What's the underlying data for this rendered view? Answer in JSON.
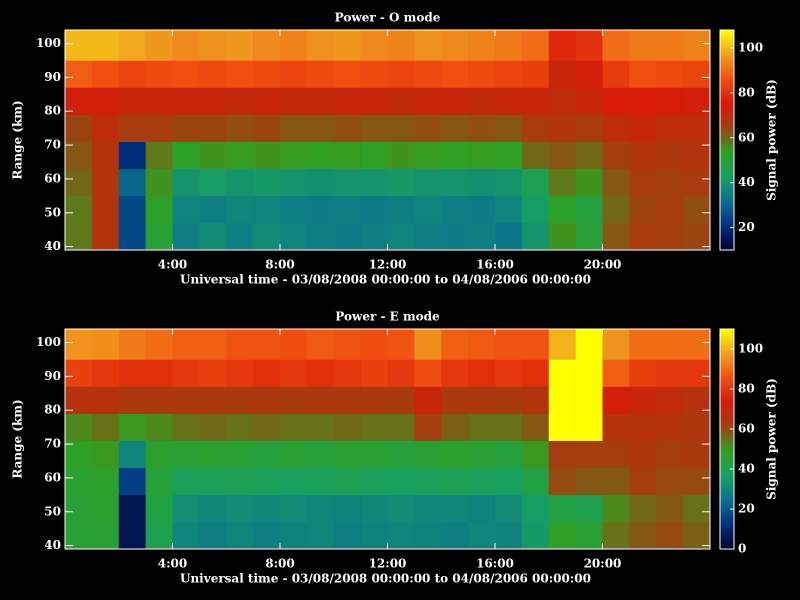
{
  "chart_data": [
    {
      "type": "heatmap",
      "title": "Power - O mode",
      "xlabel": "Universal time - 03/08/2008 00:00:00 to 04/08/2006 00:00:00",
      "ylabel": "Range (km)",
      "xlim": [
        0,
        24
      ],
      "xticks": [
        {
          "value": 4,
          "label": "4:00"
        },
        {
          "value": 8,
          "label": "8:00"
        },
        {
          "value": 12,
          "label": "12:00"
        },
        {
          "value": 16,
          "label": "16:00"
        },
        {
          "value": 20,
          "label": "20:00"
        }
      ],
      "ylim": [
        39,
        104
      ],
      "yticks": [
        40,
        50,
        60,
        70,
        80,
        90,
        100
      ],
      "xbins": [
        0,
        1,
        2,
        3,
        4,
        5,
        6,
        7,
        8,
        9,
        10,
        11,
        12,
        13,
        14,
        15,
        16,
        17,
        18,
        19,
        20,
        21,
        22,
        23,
        24
      ],
      "ybins": [
        39,
        47,
        55,
        63,
        71,
        79,
        87,
        95,
        104
      ],
      "z": [
        [
          58,
          68,
          25,
          50,
          35,
          38,
          35,
          38,
          36,
          35,
          34,
          35,
          36,
          35,
          34,
          35,
          33,
          40,
          55,
          50,
          62,
          66,
          65,
          64
        ],
        [
          58,
          68,
          25,
          52,
          36,
          35,
          37,
          36,
          35,
          34,
          35,
          34,
          35,
          36,
          35,
          34,
          36,
          42,
          52,
          48,
          60,
          64,
          66,
          63
        ],
        [
          60,
          68,
          30,
          55,
          40,
          42,
          40,
          41,
          40,
          39,
          40,
          40,
          41,
          40,
          40,
          39,
          40,
          45,
          58,
          55,
          62,
          66,
          65,
          66
        ],
        [
          62,
          68,
          20,
          58,
          52,
          55,
          54,
          55,
          54,
          53,
          54,
          53,
          55,
          54,
          53,
          54,
          53,
          60,
          62,
          60,
          65,
          68,
          67,
          68
        ],
        [
          64,
          70,
          66,
          66,
          64,
          64,
          63,
          64,
          62,
          62,
          63,
          62,
          62,
          63,
          62,
          63,
          62,
          66,
          68,
          66,
          70,
          72,
          70,
          70
        ],
        [
          74,
          74,
          72,
          72,
          72,
          72,
          71,
          72,
          71,
          71,
          72,
          72,
          71,
          72,
          72,
          71,
          72,
          72,
          70,
          72,
          76,
          76,
          75,
          74
        ],
        [
          88,
          86,
          84,
          85,
          86,
          85,
          86,
          85,
          84,
          85,
          86,
          85,
          84,
          85,
          86,
          85,
          84,
          83,
          72,
          74,
          82,
          86,
          85,
          84
        ],
        [
          100,
          100,
          98,
          96,
          94,
          95,
          96,
          94,
          93,
          95,
          96,
          94,
          93,
          95,
          94,
          93,
          92,
          90,
          78,
          80,
          90,
          92,
          92,
          93
        ]
      ],
      "colorbar": {
        "label": "Signal power (dB)",
        "lim": [
          10,
          108
        ],
        "ticks": [
          20,
          40,
          60,
          80,
          100
        ]
      },
      "colormap": [
        "#000030",
        "#003080",
        "#0a7090",
        "#18a060",
        "#30a020",
        "#a04010",
        "#d81a0a",
        "#f05010",
        "#f0a020",
        "#ffff00"
      ]
    },
    {
      "type": "heatmap",
      "title": "Power - E mode",
      "xlabel": "Universal time - 03/08/2008 00:00:00 to 04/08/2006 00:00:00",
      "ylabel": "Range (km)",
      "xlim": [
        0,
        24
      ],
      "xticks": [
        {
          "value": 4,
          "label": "4:00"
        },
        {
          "value": 8,
          "label": "8:00"
        },
        {
          "value": 12,
          "label": "12:00"
        },
        {
          "value": 16,
          "label": "16:00"
        },
        {
          "value": 20,
          "label": "20:00"
        }
      ],
      "ylim": [
        39,
        104
      ],
      "yticks": [
        40,
        50,
        60,
        70,
        80,
        90,
        100
      ],
      "xbins": [
        0,
        1,
        2,
        3,
        4,
        5,
        6,
        7,
        8,
        9,
        10,
        11,
        12,
        13,
        14,
        15,
        16,
        17,
        18,
        19,
        20,
        21,
        22,
        23,
        24
      ],
      "ybins": [
        39,
        47,
        55,
        63,
        71,
        79,
        87,
        95,
        104
      ],
      "z": [
        [
          45,
          45,
          5,
          40,
          30,
          28,
          30,
          28,
          29,
          30,
          28,
          29,
          30,
          29,
          28,
          30,
          29,
          35,
          48,
          45,
          55,
          58,
          60,
          57
        ],
        [
          45,
          46,
          5,
          42,
          32,
          30,
          31,
          30,
          31,
          30,
          29,
          30,
          31,
          30,
          30,
          29,
          31,
          36,
          42,
          40,
          52,
          56,
          58,
          55
        ],
        [
          46,
          47,
          15,
          44,
          38,
          38,
          39,
          38,
          37,
          38,
          39,
          38,
          37,
          38,
          39,
          38,
          37,
          42,
          60,
          58,
          58,
          62,
          60,
          60
        ],
        [
          48,
          50,
          30,
          46,
          45,
          46,
          45,
          44,
          45,
          44,
          45,
          45,
          44,
          45,
          46,
          45,
          44,
          50,
          62,
          62,
          62,
          64,
          62,
          63
        ],
        [
          52,
          55,
          50,
          52,
          55,
          56,
          55,
          56,
          55,
          55,
          56,
          55,
          55,
          62,
          57,
          55,
          55,
          58,
          110,
          110,
          66,
          66,
          65,
          64
        ],
        [
          66,
          66,
          64,
          64,
          64,
          64,
          63,
          64,
          63,
          64,
          64,
          64,
          63,
          70,
          64,
          64,
          63,
          65,
          110,
          110,
          72,
          70,
          68,
          66
        ],
        [
          82,
          80,
          78,
          78,
          80,
          82,
          80,
          78,
          80,
          78,
          80,
          82,
          80,
          85,
          80,
          78,
          80,
          78,
          110,
          110,
          88,
          82,
          80,
          80
        ],
        [
          96,
          95,
          92,
          90,
          88,
          88,
          86,
          86,
          85,
          87,
          86,
          85,
          86,
          95,
          88,
          87,
          86,
          86,
          100,
          110,
          96,
          90,
          90,
          90
        ]
      ],
      "colorbar": {
        "label": "Signal power (dB)",
        "lim": [
          0,
          110
        ],
        "ticks": [
          0,
          20,
          40,
          60,
          80,
          100
        ]
      },
      "colormap": [
        "#000030",
        "#003080",
        "#0a7090",
        "#18a060",
        "#30a020",
        "#a04010",
        "#d81a0a",
        "#f05010",
        "#f0a020",
        "#ffff00"
      ]
    }
  ]
}
